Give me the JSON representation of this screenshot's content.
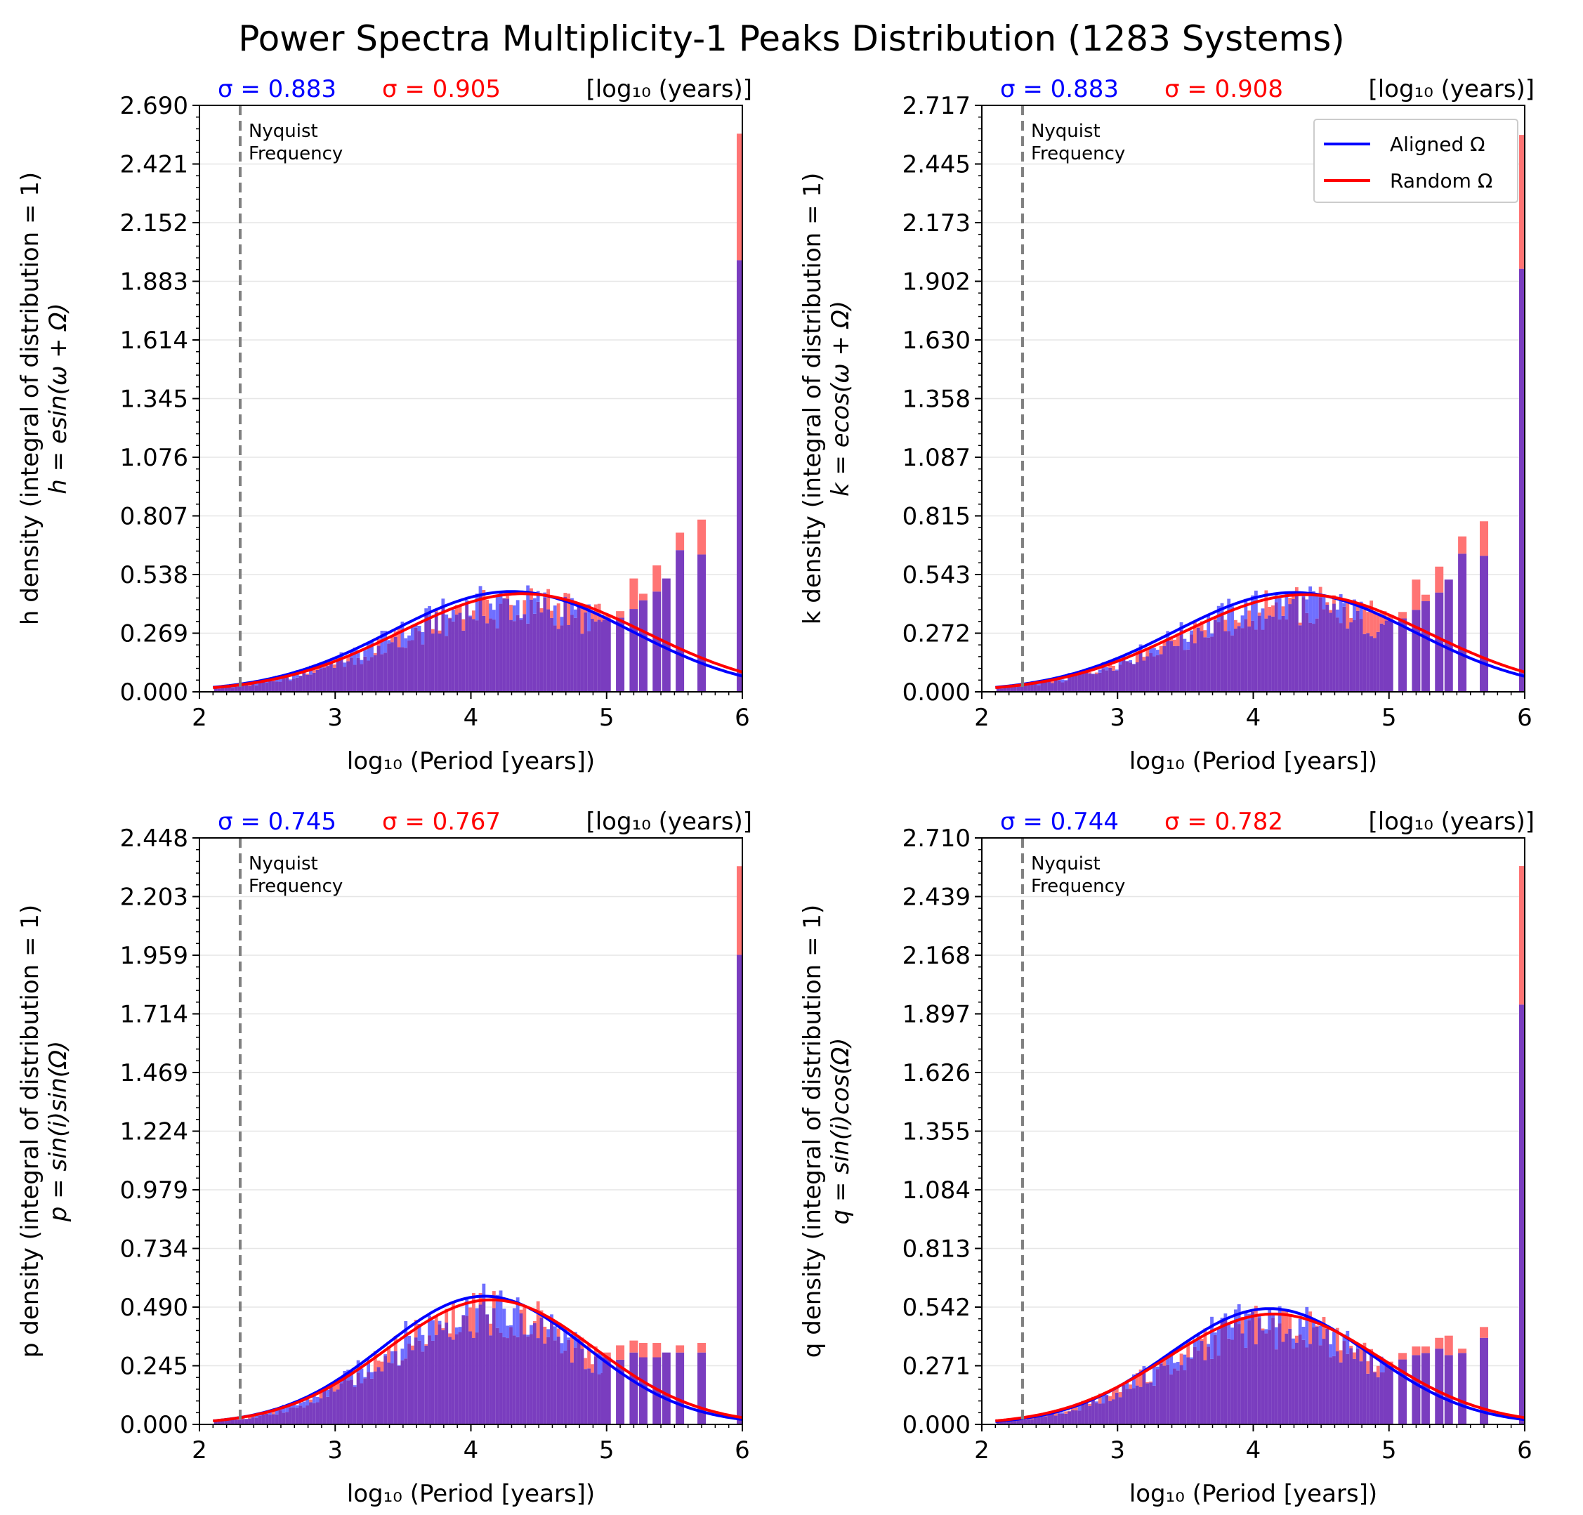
{
  "figure": {
    "title": "Power Spectra Multiplicity-1 Peaks Distribution (1283 Systems)",
    "legend": {
      "placement": "top-right of top-right panel",
      "entries": [
        {
          "label": "Aligned Ω",
          "color": "#0000ff"
        },
        {
          "label": "Random Ω",
          "color": "#ff0000"
        }
      ]
    },
    "colors": {
      "aligned": "#0000ff",
      "random": "#ff0000",
      "aligned_hist": "#6f6fff",
      "random_hist": "#ff7474",
      "overlap_hist": "#7a3dbf",
      "nyquist": "#808080"
    }
  },
  "chart_data": [
    {
      "type": "bar",
      "panel": "h",
      "ylabel": "h density (integral of distribution = 1)",
      "ylabel2": "h = esin(ω + Ω)",
      "xlabel": "log₁₀ (Period [years])",
      "xlim": [
        2,
        6
      ],
      "xticks": [
        "2",
        "3",
        "4",
        "5",
        "6"
      ],
      "ylim": [
        0,
        2.69
      ],
      "yticks": [
        "0.000",
        "0.269",
        "0.538",
        "0.807",
        "1.076",
        "1.345",
        "1.614",
        "1.883",
        "2.152",
        "2.421",
        "2.690"
      ],
      "grid": "horizontal",
      "sigma_aligned": "σ = 0.883",
      "sigma_random": "σ = 0.905",
      "units": "[log₁₀ (years)]",
      "nyquist_x": 2.3,
      "nyquist_label": [
        "Nyquist",
        "Frequency"
      ],
      "fits": {
        "aligned": {
          "mu": 4.3,
          "sigma": 0.883,
          "peak": 0.46
        },
        "random": {
          "mu": 4.38,
          "sigma": 0.905,
          "peak": 0.45
        }
      },
      "bars": [
        {
          "x": 5.0,
          "aligned": 0.33,
          "random": 0.35
        },
        {
          "x": 5.1,
          "aligned": 0.34,
          "random": 0.37
        },
        {
          "x": 5.2,
          "aligned": 0.38,
          "random": 0.52
        },
        {
          "x": 5.27,
          "aligned": 0.42,
          "random": 0.45
        },
        {
          "x": 5.37,
          "aligned": 0.46,
          "random": 0.58
        },
        {
          "x": 5.44,
          "aligned": 0.52,
          "random": 0.52
        },
        {
          "x": 5.54,
          "aligned": 0.65,
          "random": 0.73
        },
        {
          "x": 5.7,
          "aligned": 0.63,
          "random": 0.79
        },
        {
          "x": 6.0,
          "aligned": 1.98,
          "random": 2.56
        }
      ]
    },
    {
      "type": "bar",
      "panel": "k",
      "ylabel": "k density (integral of distribution = 1)",
      "ylabel2": "k = ecos(ω + Ω)",
      "xlabel": "log₁₀ (Period [years])",
      "xlim": [
        2,
        6
      ],
      "xticks": [
        "2",
        "3",
        "4",
        "5",
        "6"
      ],
      "ylim": [
        0,
        2.717
      ],
      "yticks": [
        "0.000",
        "0.272",
        "0.543",
        "0.815",
        "1.087",
        "1.358",
        "1.630",
        "1.902",
        "2.173",
        "2.445",
        "2.717"
      ],
      "grid": "horizontal",
      "sigma_aligned": "σ = 0.883",
      "sigma_random": "σ = 0.908",
      "units": "[log₁₀ (years)]",
      "nyquist_x": 2.3,
      "nyquist_label": [
        "Nyquist",
        "Frequency"
      ],
      "fits": {
        "aligned": {
          "mu": 4.3,
          "sigma": 0.883,
          "peak": 0.46
        },
        "random": {
          "mu": 4.38,
          "sigma": 0.908,
          "peak": 0.45
        }
      },
      "bars": [
        {
          "x": 5.0,
          "aligned": 0.33,
          "random": 0.35
        },
        {
          "x": 5.1,
          "aligned": 0.34,
          "random": 0.37
        },
        {
          "x": 5.2,
          "aligned": 0.38,
          "random": 0.52
        },
        {
          "x": 5.27,
          "aligned": 0.42,
          "random": 0.45
        },
        {
          "x": 5.37,
          "aligned": 0.46,
          "random": 0.58
        },
        {
          "x": 5.44,
          "aligned": 0.52,
          "random": 0.52
        },
        {
          "x": 5.54,
          "aligned": 0.64,
          "random": 0.72
        },
        {
          "x": 5.7,
          "aligned": 0.63,
          "random": 0.79
        },
        {
          "x": 6.0,
          "aligned": 1.96,
          "random": 2.58
        }
      ]
    },
    {
      "type": "bar",
      "panel": "p",
      "ylabel": "p density (integral of distribution = 1)",
      "ylabel2": "p = sin(i)sin(Ω)",
      "xlabel": "log₁₀ (Period [years])",
      "xlim": [
        2,
        6
      ],
      "xticks": [
        "2",
        "3",
        "4",
        "5",
        "6"
      ],
      "ylim": [
        0,
        2.448
      ],
      "yticks": [
        "0.000",
        "0.245",
        "0.490",
        "0.734",
        "0.979",
        "1.224",
        "1.469",
        "1.714",
        "1.959",
        "2.203",
        "2.448"
      ],
      "grid": "horizontal",
      "sigma_aligned": "σ = 0.745",
      "sigma_random": "σ = 0.767",
      "units": "[log₁₀ (years)]",
      "nyquist_x": 2.3,
      "nyquist_label": [
        "Nyquist",
        "Frequency"
      ],
      "fits": {
        "aligned": {
          "mu": 4.1,
          "sigma": 0.745,
          "peak": 0.535
        },
        "random": {
          "mu": 4.15,
          "sigma": 0.767,
          "peak": 0.52
        }
      },
      "bars": [
        {
          "x": 5.0,
          "aligned": 0.28,
          "random": 0.3
        },
        {
          "x": 5.1,
          "aligned": 0.27,
          "random": 0.33
        },
        {
          "x": 5.2,
          "aligned": 0.3,
          "random": 0.35
        },
        {
          "x": 5.27,
          "aligned": 0.28,
          "random": 0.34
        },
        {
          "x": 5.37,
          "aligned": 0.28,
          "random": 0.34
        },
        {
          "x": 5.44,
          "aligned": 0.3,
          "random": 0.3
        },
        {
          "x": 5.54,
          "aligned": 0.3,
          "random": 0.33
        },
        {
          "x": 5.7,
          "aligned": 0.3,
          "random": 0.34
        },
        {
          "x": 6.0,
          "aligned": 1.96,
          "random": 2.33
        }
      ]
    },
    {
      "type": "bar",
      "panel": "q",
      "ylabel": "q density (integral of distribution = 1)",
      "ylabel2": "q = sin(i)cos(Ω)",
      "xlabel": "log₁₀ (Period [years])",
      "xlim": [
        2,
        6
      ],
      "xticks": [
        "2",
        "3",
        "4",
        "5",
        "6"
      ],
      "ylim": [
        0,
        2.71
      ],
      "yticks": [
        "0.000",
        "0.271",
        "0.542",
        "0.813",
        "1.084",
        "1.355",
        "1.626",
        "1.897",
        "2.168",
        "2.439",
        "2.710"
      ],
      "grid": "horizontal",
      "sigma_aligned": "σ = 0.744",
      "sigma_random": "σ = 0.782",
      "units": "[log₁₀ (years)]",
      "nyquist_x": 2.3,
      "nyquist_label": [
        "Nyquist",
        "Frequency"
      ],
      "fits": {
        "aligned": {
          "mu": 4.12,
          "sigma": 0.744,
          "peak": 0.535
        },
        "random": {
          "mu": 4.15,
          "sigma": 0.782,
          "peak": 0.51
        }
      },
      "bars": [
        {
          "x": 5.0,
          "aligned": 0.27,
          "random": 0.29
        },
        {
          "x": 5.1,
          "aligned": 0.3,
          "random": 0.33
        },
        {
          "x": 5.2,
          "aligned": 0.32,
          "random": 0.36
        },
        {
          "x": 5.27,
          "aligned": 0.33,
          "random": 0.36
        },
        {
          "x": 5.37,
          "aligned": 0.35,
          "random": 0.4
        },
        {
          "x": 5.44,
          "aligned": 0.32,
          "random": 0.41
        },
        {
          "x": 5.54,
          "aligned": 0.33,
          "random": 0.35
        },
        {
          "x": 5.7,
          "aligned": 0.4,
          "random": 0.45
        },
        {
          "x": 6.0,
          "aligned": 1.94,
          "random": 2.58
        }
      ]
    }
  ]
}
